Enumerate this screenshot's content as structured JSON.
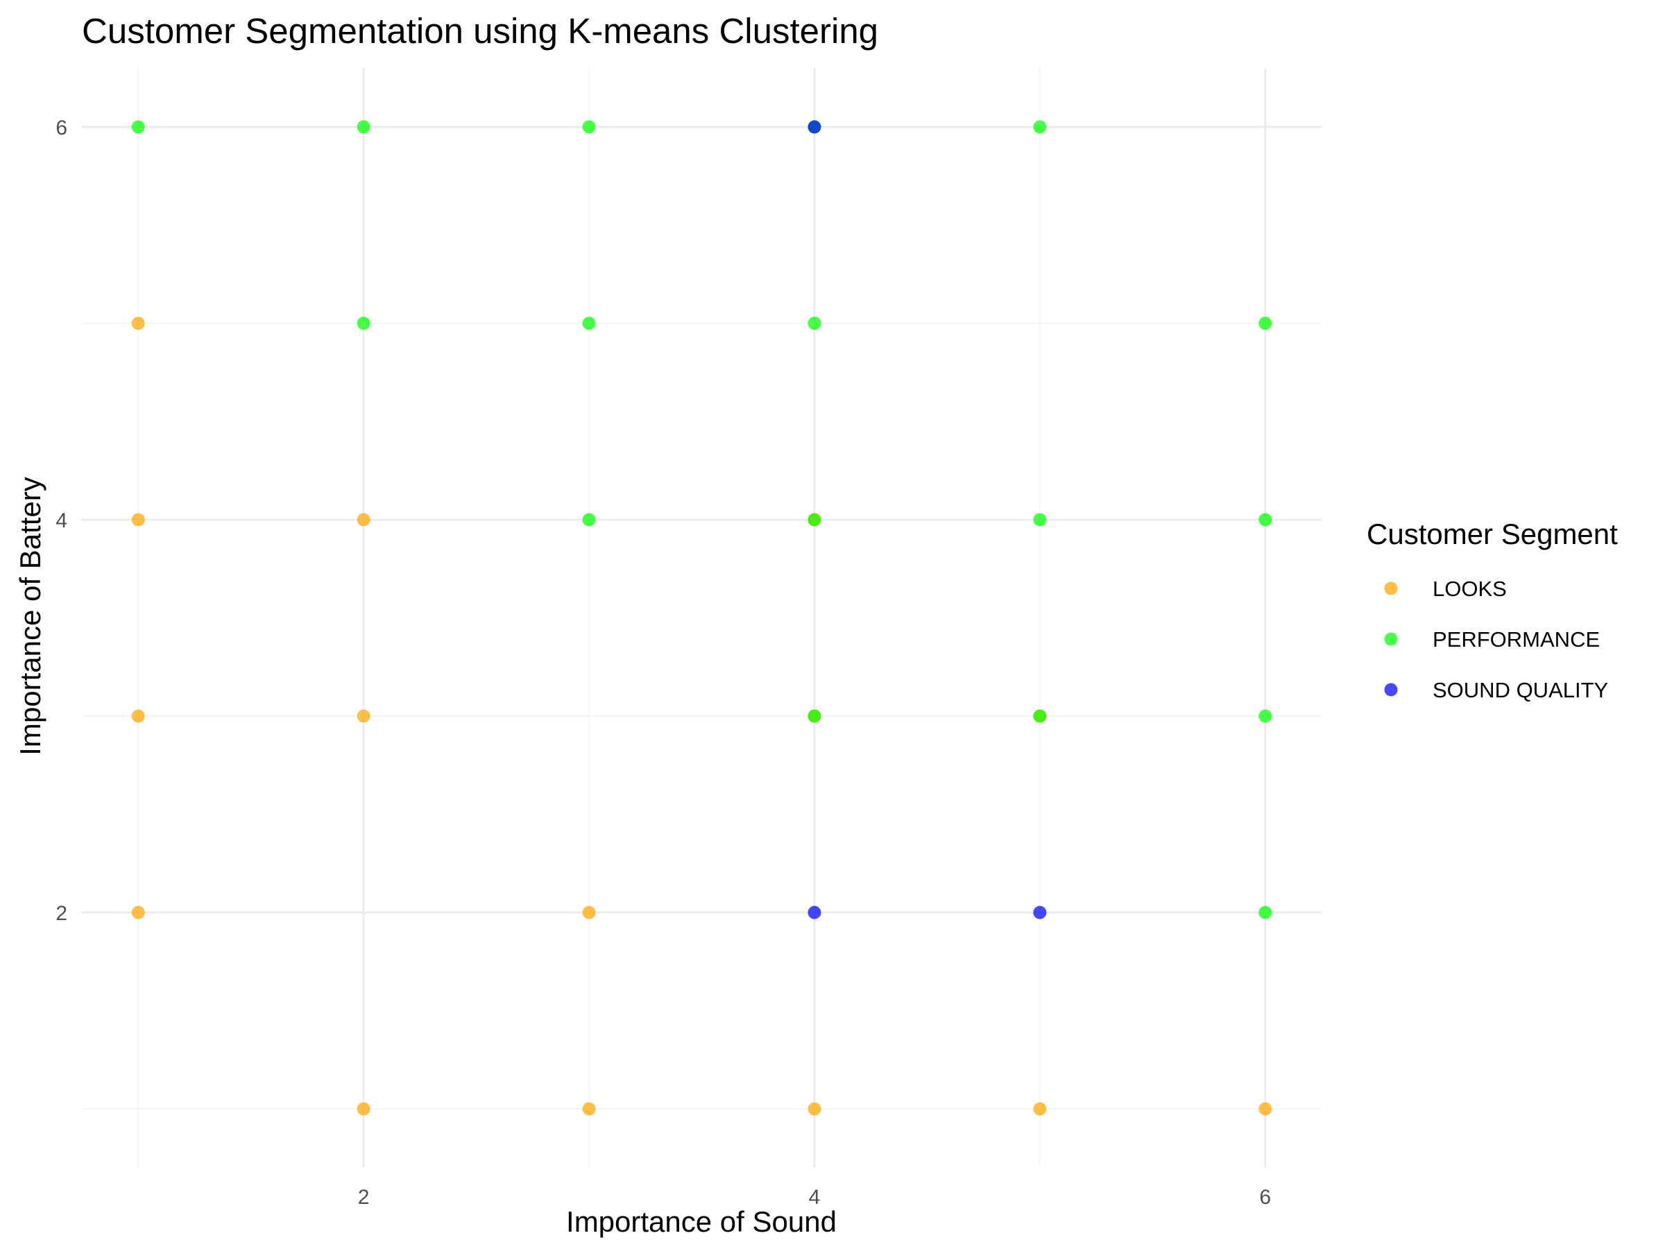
{
  "chart_data": {
    "type": "scatter",
    "title": "Customer Segmentation using K-means Clustering",
    "xlabel": "Importance of Sound",
    "ylabel": "Importance of Battery",
    "xlim": [
      0.75,
      6.25
    ],
    "ylim": [
      0.7,
      6.3
    ],
    "x_ticks": [
      2,
      4,
      6
    ],
    "y_ticks": [
      2,
      4,
      6
    ],
    "x_grid": [
      1,
      2,
      3,
      4,
      5,
      6
    ],
    "y_grid": [
      1,
      2,
      3,
      4,
      5,
      6
    ],
    "grid": true,
    "legend": {
      "title": "Customer Segment",
      "position": "right"
    },
    "series": [
      {
        "name": "LOOKS",
        "color": "#FFA500",
        "points": [
          [
            1,
            5
          ],
          [
            1,
            4
          ],
          [
            1,
            3
          ],
          [
            1,
            2
          ],
          [
            2,
            4
          ],
          [
            2,
            3
          ],
          [
            2,
            1
          ],
          [
            3,
            2
          ],
          [
            3,
            1
          ],
          [
            4,
            4
          ],
          [
            4,
            3
          ],
          [
            4,
            1
          ],
          [
            5,
            3
          ],
          [
            5,
            1
          ],
          [
            6,
            1
          ]
        ]
      },
      {
        "name": "PERFORMANCE",
        "color": "#00FF00",
        "points": [
          [
            1,
            6
          ],
          [
            2,
            6
          ],
          [
            2,
            5
          ],
          [
            3,
            6
          ],
          [
            3,
            5
          ],
          [
            3,
            4
          ],
          [
            4,
            6
          ],
          [
            4,
            5
          ],
          [
            4,
            4
          ],
          [
            4,
            3
          ],
          [
            5,
            6
          ],
          [
            5,
            4
          ],
          [
            5,
            3
          ],
          [
            6,
            5
          ],
          [
            6,
            4
          ],
          [
            6,
            3
          ],
          [
            6,
            2
          ]
        ]
      },
      {
        "name": "SOUND QUALITY",
        "color": "#0000FF",
        "points": [
          [
            4,
            6
          ],
          [
            4,
            2
          ],
          [
            5,
            2
          ]
        ]
      }
    ]
  }
}
